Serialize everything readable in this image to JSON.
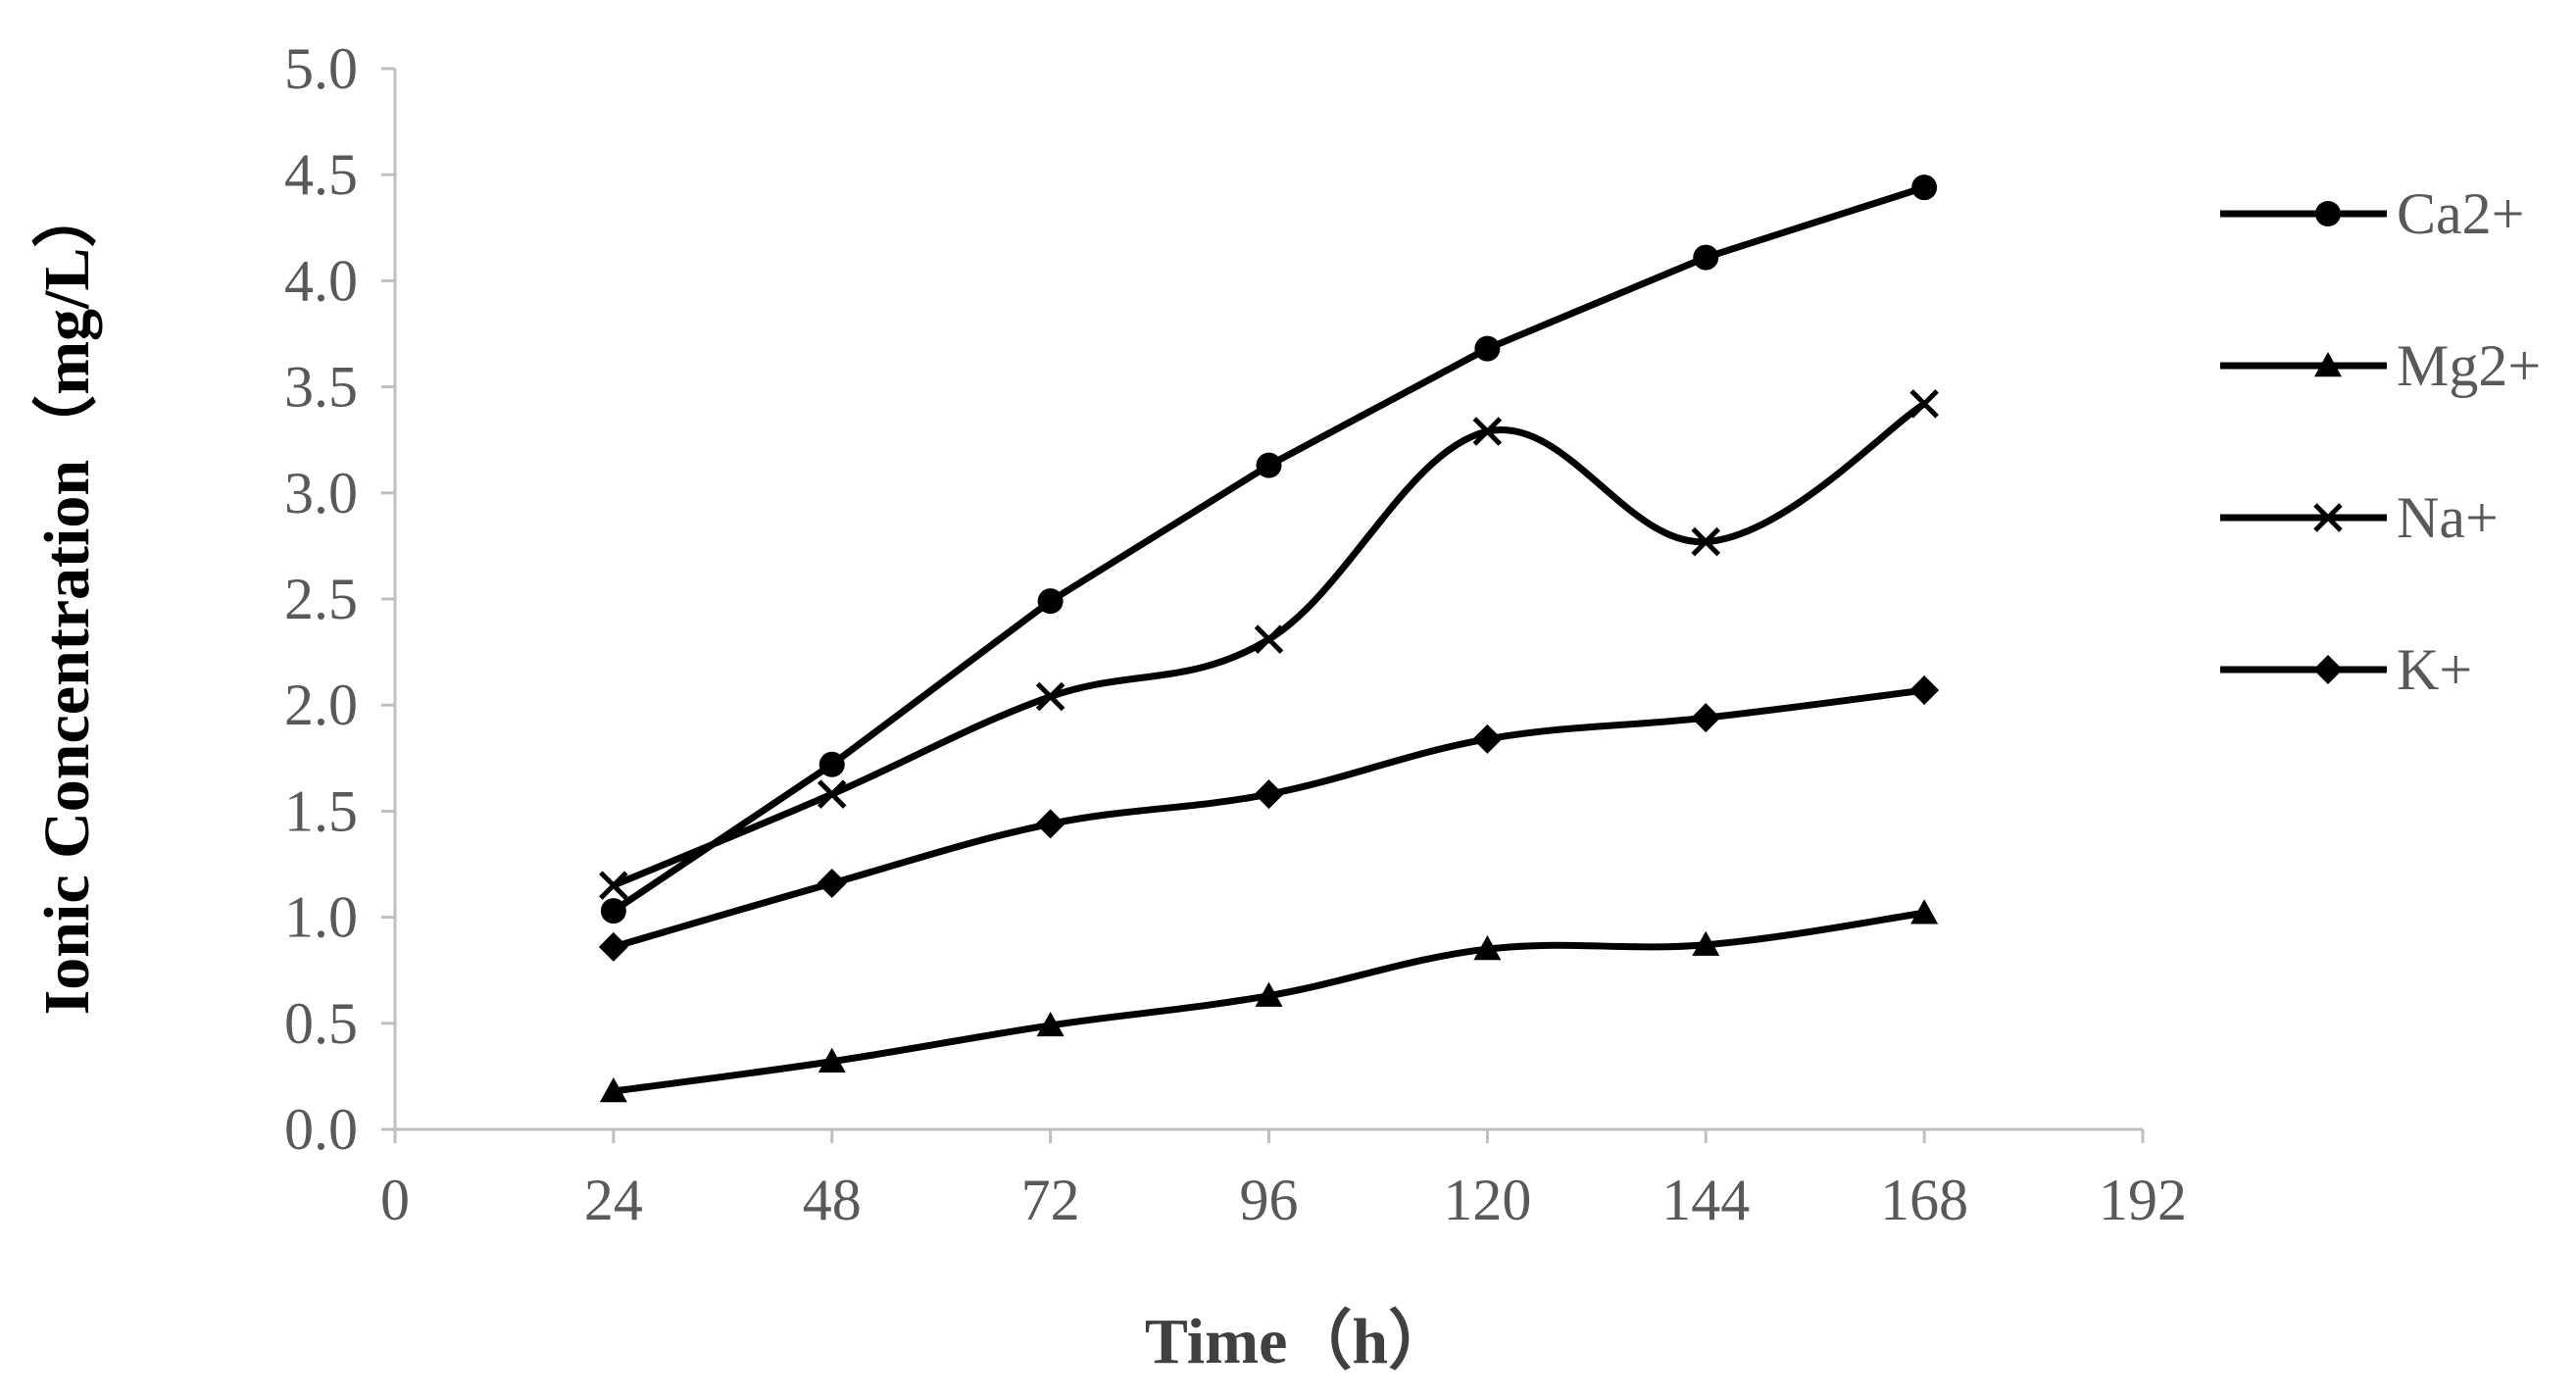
{
  "chart_data": {
    "type": "line",
    "title": "",
    "xlabel": "Time（h）",
    "ylabel": "Ionic Concentration（mg/L）",
    "xlim": [
      0,
      192
    ],
    "ylim": [
      0,
      5
    ],
    "x_ticks": [
      "0",
      "24",
      "48",
      "72",
      "96",
      "120",
      "144",
      "168",
      "192"
    ],
    "y_ticks": [
      "0.0",
      "0.5",
      "1.0",
      "1.5",
      "2.0",
      "2.5",
      "3.0",
      "3.5",
      "4.0",
      "4.5",
      "5.0"
    ],
    "x": [
      24,
      48,
      72,
      96,
      120,
      144,
      168
    ],
    "legend_position": "right",
    "grid": false,
    "series": [
      {
        "name": "Ca2+",
        "marker": "circle",
        "smooth": false,
        "values": [
          1.03,
          1.72,
          2.49,
          3.13,
          3.68,
          4.11,
          4.44
        ]
      },
      {
        "name": "Mg2+",
        "marker": "triangle",
        "smooth": true,
        "values": [
          0.18,
          0.32,
          0.49,
          0.63,
          0.85,
          0.87,
          1.02
        ]
      },
      {
        "name": "Na+",
        "marker": "x",
        "smooth": true,
        "values": [
          1.15,
          1.58,
          2.04,
          2.31,
          3.29,
          2.77,
          3.42
        ]
      },
      {
        "name": "K+",
        "marker": "diamond",
        "smooth": true,
        "values": [
          0.86,
          1.16,
          1.44,
          1.58,
          1.84,
          1.94,
          2.07
        ]
      }
    ],
    "colors": {
      "series": "#000000",
      "axis": "#bfbfbf",
      "tick_text": "#595959"
    }
  }
}
